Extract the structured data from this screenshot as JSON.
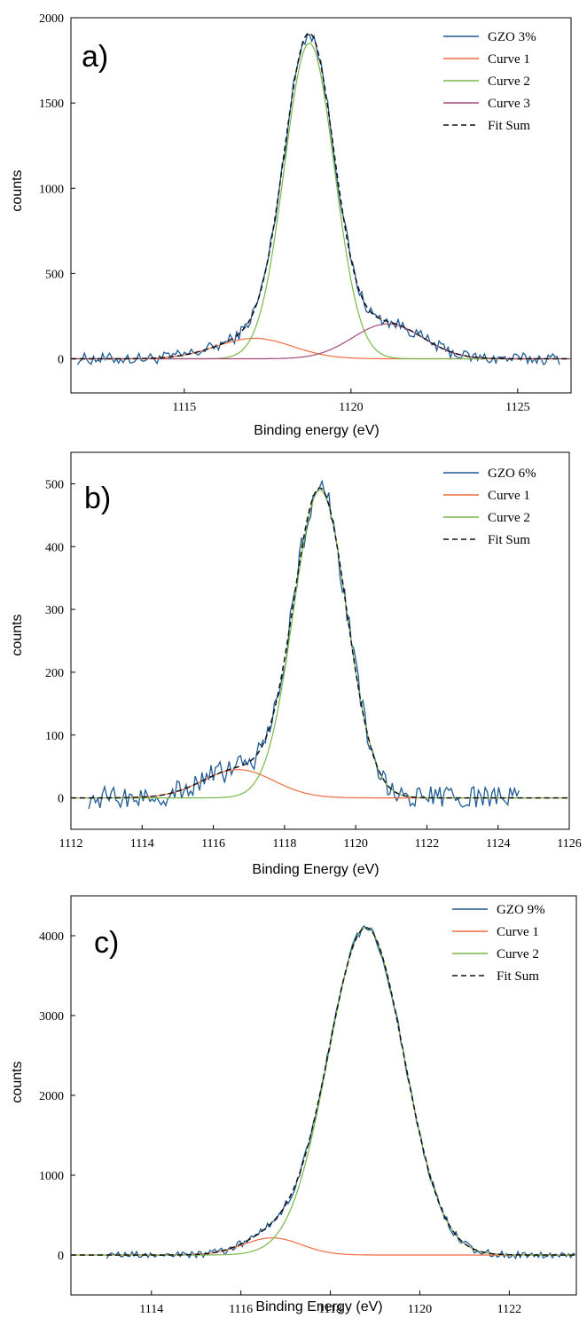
{
  "chart_data": [
    {
      "type": "line",
      "panel_label": "a)",
      "xlabel": "Binding energy (eV)",
      "ylabel": "counts",
      "xlim": [
        1111.6,
        1126.6
      ],
      "ylim": [
        -200,
        2000
      ],
      "xticks": [
        1115,
        1120,
        1125
      ],
      "yticks": [
        0,
        500,
        1000,
        1500,
        2000
      ],
      "xtick_labels": [
        "1115",
        "1120",
        "1125"
      ],
      "ytick_labels": [
        "0",
        "500",
        "1000",
        "1500",
        "2000"
      ],
      "grid": false,
      "legend_position": "top-right",
      "noise": 35,
      "data_range": [
        1111.8,
        1126.3
      ],
      "components": [
        {
          "name": "Curve 1",
          "color": "#f26b3f",
          "amplitude": 120,
          "center": 1117.1,
          "sigma": 1.15
        },
        {
          "name": "Curve 2",
          "color": "#7ab648",
          "amplitude": 1850,
          "center": 1118.75,
          "sigma": 0.75
        },
        {
          "name": "Curve 3",
          "color": "#a3497c",
          "amplitude": 205,
          "center": 1121.1,
          "sigma": 1.05
        }
      ],
      "series": [
        {
          "name": "GZO 3%",
          "color": "#1f5a94",
          "style": "data"
        },
        {
          "name": "Curve 1",
          "color": "#f26b3f",
          "style": "component"
        },
        {
          "name": "Curve 2",
          "color": "#7ab648",
          "style": "component"
        },
        {
          "name": "Curve 3",
          "color": "#a3497c",
          "style": "component"
        },
        {
          "name": "Fit Sum",
          "color": "#111111",
          "style": "dashed"
        }
      ]
    },
    {
      "type": "line",
      "panel_label": "b)",
      "xlabel": "Binding Energy (eV)",
      "ylabel": "counts",
      "xlim": [
        1112,
        1126
      ],
      "ylim": [
        -50,
        550
      ],
      "xticks": [
        1112,
        1114,
        1116,
        1118,
        1120,
        1122,
        1124,
        1126
      ],
      "yticks": [
        0,
        100,
        200,
        300,
        400,
        500
      ],
      "xtick_labels": [
        "1112",
        "1114",
        "1116",
        "1118",
        "1120",
        "1122",
        "1124",
        "1126"
      ],
      "ytick_labels": [
        "0",
        "100",
        "200",
        "300",
        "400",
        "500"
      ],
      "grid": false,
      "legend_position": "top-right",
      "noise": 18,
      "data_range": [
        1112.5,
        1124.6
      ],
      "components": [
        {
          "name": "Curve 1",
          "color": "#f26b3f",
          "amplitude": 45,
          "center": 1116.7,
          "sigma": 1.0
        },
        {
          "name": "Curve 2",
          "color": "#7ab648",
          "amplitude": 490,
          "center": 1119.0,
          "sigma": 0.75
        }
      ],
      "series": [
        {
          "name": "GZO 6%",
          "color": "#1f5a94",
          "style": "data"
        },
        {
          "name": "Curve 1",
          "color": "#f26b3f",
          "style": "component"
        },
        {
          "name": "Curve 2",
          "color": "#7ab648",
          "style": "component"
        },
        {
          "name": "Fit Sum",
          "color": "#111111",
          "style": "dashed"
        }
      ]
    },
    {
      "type": "line",
      "panel_label": "c)",
      "xlabel": "Binding Energy (eV)",
      "ylabel": "counts",
      "xlim": [
        1112.2,
        1123.5
      ],
      "ylim": [
        -500,
        4500
      ],
      "xticks": [
        1114,
        1116,
        1118,
        1120,
        1122
      ],
      "yticks": [
        0,
        1000,
        2000,
        3000,
        4000
      ],
      "xtick_labels": [
        "1114",
        "1116",
        "1118",
        "1120",
        "1122"
      ],
      "ytick_labels": [
        "0",
        "1000",
        "2000",
        "3000",
        "4000"
      ],
      "grid": false,
      "legend_position": "top-right",
      "noise": 45,
      "data_range": [
        1113.0,
        1123.5
      ],
      "components": [
        {
          "name": "Curve 1",
          "color": "#f26b3f",
          "amplitude": 215,
          "center": 1116.7,
          "sigma": 0.65
        },
        {
          "name": "Curve 2",
          "color": "#7ab648",
          "amplitude": 4100,
          "center": 1118.8,
          "sigma": 0.85
        }
      ],
      "series": [
        {
          "name": "GZO 9%",
          "color": "#1f5a94",
          "style": "data"
        },
        {
          "name": "Curve 1",
          "color": "#f26b3f",
          "style": "component"
        },
        {
          "name": "Curve 2",
          "color": "#7ab648",
          "style": "component"
        },
        {
          "name": "Fit Sum",
          "color": "#111111",
          "style": "dashed"
        }
      ]
    }
  ]
}
